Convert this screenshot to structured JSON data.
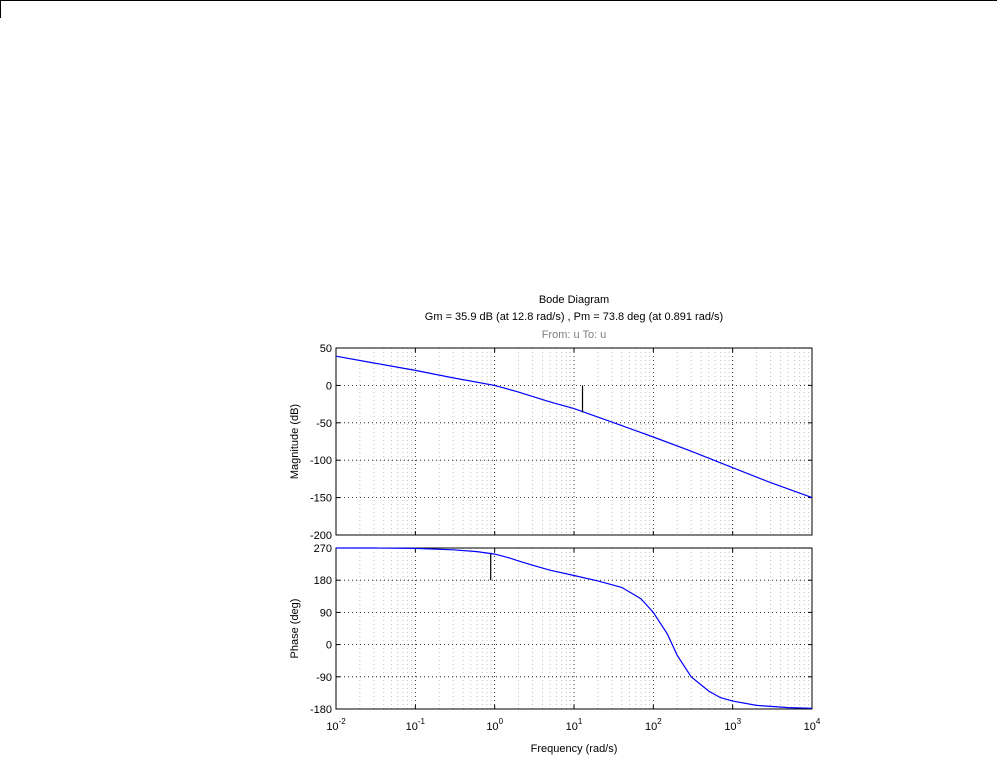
{
  "chart_data": {
    "type": "line",
    "title": "Bode Diagram",
    "subtitle": "Gm = 35.9 dB (at 12.8 rad/s) ,  Pm = 73.8 deg (at 0.891 rad/s)",
    "io_label": "From: u  To: u",
    "xlabel": "Frequency  (rad/s)",
    "xscale": "log",
    "xlim": [
      0.01,
      10000
    ],
    "x_ticks": [
      {
        "base": "10",
        "exp": "-2"
      },
      {
        "base": "10",
        "exp": "-1"
      },
      {
        "base": "10",
        "exp": "0"
      },
      {
        "base": "10",
        "exp": "1"
      },
      {
        "base": "10",
        "exp": "2"
      },
      {
        "base": "10",
        "exp": "3"
      },
      {
        "base": "10",
        "exp": "4"
      }
    ],
    "grid": true,
    "line_color": "#0000ff",
    "margin_marker_color": "#000000",
    "panels": [
      {
        "name": "magnitude",
        "ylabel": "Magnitude (dB)",
        "ylim": [
          -200,
          50
        ],
        "y_ticks": [
          "50",
          "0",
          "-50",
          "-100",
          "-150",
          "-200"
        ],
        "x": [
          0.01,
          0.03,
          0.1,
          0.3,
          1,
          2,
          5,
          10,
          30,
          100,
          300,
          1000,
          3000,
          10000
        ],
        "y": [
          39,
          30,
          20,
          10,
          0,
          -9,
          -22,
          -31,
          -49,
          -69,
          -88,
          -110,
          -130,
          -150
        ],
        "marker": {
          "x": 12.8,
          "y_from": 0,
          "y_to": -35.9
        }
      },
      {
        "name": "phase",
        "ylabel": "Phase (deg)",
        "ylim": [
          -180,
          270
        ],
        "y_ticks": [
          "270",
          "180",
          "90",
          "0",
          "-90",
          "-180"
        ],
        "x": [
          0.01,
          0.03,
          0.1,
          0.3,
          0.6,
          1,
          1.5,
          2,
          3,
          5,
          10,
          20,
          40,
          70,
          100,
          150,
          200,
          300,
          500,
          700,
          1000,
          2000,
          5000,
          10000
        ],
        "y": [
          270,
          270,
          269,
          265,
          260,
          253,
          243,
          234,
          222,
          208,
          193,
          178,
          160,
          128,
          90,
          30,
          -30,
          -90,
          -130,
          -148,
          -158,
          -170,
          -176,
          -178
        ],
        "marker": {
          "x": 0.891,
          "y_from": 180,
          "y_to": 253.8
        }
      }
    ]
  }
}
